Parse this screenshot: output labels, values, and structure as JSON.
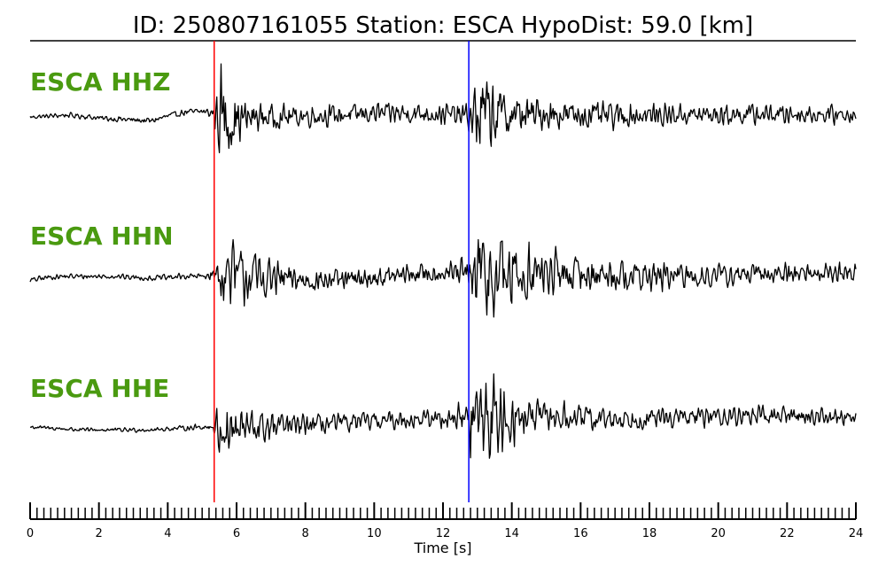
{
  "colors": {
    "label": "#4a9a10",
    "trace": "#000000",
    "p_pick": "#ff0000",
    "s_pick": "#0000ff",
    "background": "#ffffff"
  },
  "chart_data": {
    "type": "line",
    "title": "ID: 250807161055   Station: ESCA   HypoDist:    59.0 [km]",
    "xlabel": "Time [s]",
    "ylabel": "",
    "xlim": [
      0,
      24
    ],
    "x_ticks": [
      "0",
      "2",
      "4",
      "6",
      "8",
      "10",
      "12",
      "14",
      "16",
      "18",
      "20",
      "22",
      "24"
    ],
    "minor_tick_step": 0.2,
    "grid": false,
    "picks": [
      {
        "time": 5.35,
        "color": "#ff0000"
      },
      {
        "time": 12.75,
        "color": "#0000ff"
      }
    ],
    "series": [
      {
        "name": "ESCA HHZ",
        "x": [
          0,
          0.5,
          1,
          1.5,
          2,
          2.5,
          3,
          3.5,
          4,
          4.5,
          5,
          5.3,
          5.45,
          5.6,
          5.7,
          5.8,
          5.9,
          6.0,
          6.2,
          6.5,
          7,
          8,
          9,
          10,
          11,
          12,
          12.5,
          12.8,
          13.0,
          13.2,
          13.5,
          14,
          15,
          16,
          17,
          18,
          19,
          20,
          21,
          22,
          23,
          24
        ],
        "envelope": [
          0.04,
          0.04,
          0.05,
          0.05,
          0.05,
          0.06,
          0.06,
          0.06,
          0.06,
          0.06,
          0.07,
          0.1,
          0.6,
          1.0,
          0.9,
          0.8,
          0.6,
          0.5,
          0.4,
          0.3,
          0.25,
          0.2,
          0.2,
          0.2,
          0.2,
          0.2,
          0.22,
          0.3,
          0.9,
          0.8,
          0.6,
          0.4,
          0.3,
          0.28,
          0.25,
          0.22,
          0.2,
          0.2,
          0.2,
          0.18,
          0.17,
          0.16
        ],
        "trend": [
          -0.1,
          -0.05,
          0.0,
          -0.05,
          -0.15,
          -0.2,
          -0.25,
          -0.3,
          -0.05,
          0.15,
          0.2,
          0.1,
          0.0,
          -0.05,
          -0.1,
          -0.15,
          -0.2,
          -0.25,
          -0.2,
          -0.1,
          -0.1,
          -0.05,
          0.0,
          0.1,
          0.1,
          0.05,
          0.0,
          -0.1,
          0.0,
          0.1,
          0.05,
          0.0,
          0.05,
          0.0,
          -0.05,
          0.0,
          0.02,
          0.0,
          0.05,
          0.05,
          0.03,
          0.05
        ]
      },
      {
        "name": "ESCA HHN",
        "x": [
          0,
          0.5,
          1,
          1.5,
          2,
          2.5,
          3,
          3.5,
          4,
          4.5,
          5,
          5.3,
          5.45,
          5.6,
          5.8,
          6.0,
          6.3,
          6.6,
          7,
          7.5,
          8,
          9,
          10,
          11,
          12,
          12.5,
          12.8,
          13.0,
          13.2,
          13.5,
          14,
          14.5,
          15,
          16,
          17,
          18,
          19,
          20,
          21,
          22,
          23,
          24
        ],
        "envelope": [
          0.05,
          0.05,
          0.05,
          0.05,
          0.05,
          0.05,
          0.05,
          0.05,
          0.06,
          0.06,
          0.07,
          0.1,
          0.35,
          0.55,
          0.6,
          0.65,
          0.55,
          0.5,
          0.35,
          0.3,
          0.25,
          0.2,
          0.2,
          0.2,
          0.2,
          0.25,
          0.5,
          1.0,
          1.0,
          0.9,
          0.7,
          0.55,
          0.45,
          0.35,
          0.3,
          0.28,
          0.25,
          0.22,
          0.2,
          0.2,
          0.18,
          0.18
        ],
        "trend": [
          -0.2,
          -0.05,
          0.0,
          0.0,
          0.0,
          0.0,
          -0.05,
          -0.1,
          -0.05,
          0.0,
          0.0,
          0.1,
          0.05,
          0.0,
          0.05,
          0.05,
          0.0,
          -0.05,
          -0.1,
          -0.15,
          -0.2,
          -0.2,
          -0.1,
          0.1,
          0.2,
          0.15,
          0.0,
          0.0,
          0.05,
          0.0,
          0.05,
          0.1,
          0.15,
          0.1,
          0.05,
          0.0,
          0.0,
          0.05,
          0.1,
          0.15,
          0.2,
          0.15
        ]
      },
      {
        "name": "ESCA HHE",
        "x": [
          0,
          0.5,
          1,
          1.5,
          2,
          2.5,
          3,
          3.5,
          4,
          4.5,
          5,
          5.3,
          5.45,
          5.6,
          5.8,
          6.0,
          6.3,
          6.6,
          7,
          7.5,
          8,
          9,
          10,
          11,
          12,
          12.5,
          12.7,
          12.8,
          13.0,
          13.2,
          13.5,
          14,
          14.5,
          15,
          16,
          17,
          18,
          19,
          20,
          21,
          22,
          23,
          24
        ],
        "envelope": [
          0.04,
          0.04,
          0.04,
          0.04,
          0.04,
          0.04,
          0.04,
          0.04,
          0.04,
          0.05,
          0.05,
          0.06,
          0.4,
          0.55,
          0.5,
          0.45,
          0.4,
          0.35,
          0.3,
          0.25,
          0.2,
          0.18,
          0.18,
          0.18,
          0.2,
          0.25,
          0.3,
          0.8,
          0.9,
          1.0,
          0.8,
          0.5,
          0.35,
          0.3,
          0.25,
          0.22,
          0.2,
          0.18,
          0.18,
          0.17,
          0.17,
          0.16,
          0.15
        ],
        "trend": [
          0.0,
          -0.05,
          -0.1,
          -0.15,
          -0.15,
          -0.15,
          -0.15,
          -0.15,
          -0.1,
          -0.05,
          0.0,
          0.0,
          -0.1,
          -0.15,
          -0.15,
          -0.1,
          -0.05,
          -0.05,
          0.0,
          0.05,
          0.1,
          0.2,
          0.3,
          0.4,
          0.45,
          0.5,
          0.5,
          0.3,
          0.45,
          0.5,
          0.5,
          0.45,
          0.5,
          0.5,
          0.45,
          0.4,
          0.45,
          0.5,
          0.55,
          0.6,
          0.6,
          0.55,
          0.55
        ]
      }
    ]
  }
}
